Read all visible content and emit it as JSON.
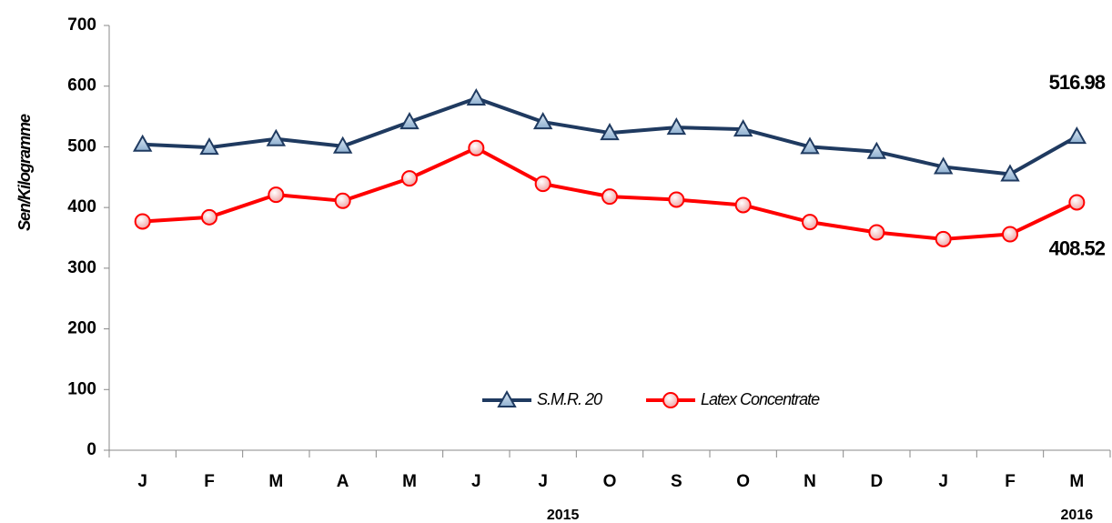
{
  "chart_data": {
    "type": "line",
    "y_label": "Sen/Kilogramme",
    "categories": [
      "J",
      "F",
      "M",
      "A",
      "M",
      "J",
      "J",
      "O",
      "S",
      "O",
      "N",
      "D",
      "J",
      "F",
      "M"
    ],
    "year_labels": [
      "2015",
      "2016"
    ],
    "series": [
      {
        "name": "S.M.R. 20",
        "color": "#1f3a60",
        "marker": "triangle",
        "values": [
          504,
          499,
          513,
          501,
          541,
          580,
          541,
          523,
          532,
          529,
          500,
          492,
          467,
          455,
          516.98
        ]
      },
      {
        "name": "Latex Concentrate",
        "color": "#ff0000",
        "marker": "circle",
        "values": [
          377,
          384,
          421,
          411,
          448,
          498,
          439,
          418,
          413,
          404,
          376,
          359,
          348,
          356,
          408.52
        ]
      }
    ],
    "ylim": [
      0,
      700
    ],
    "yticks": [
      0,
      100,
      200,
      300,
      400,
      500,
      600,
      700
    ],
    "grid": false
  }
}
